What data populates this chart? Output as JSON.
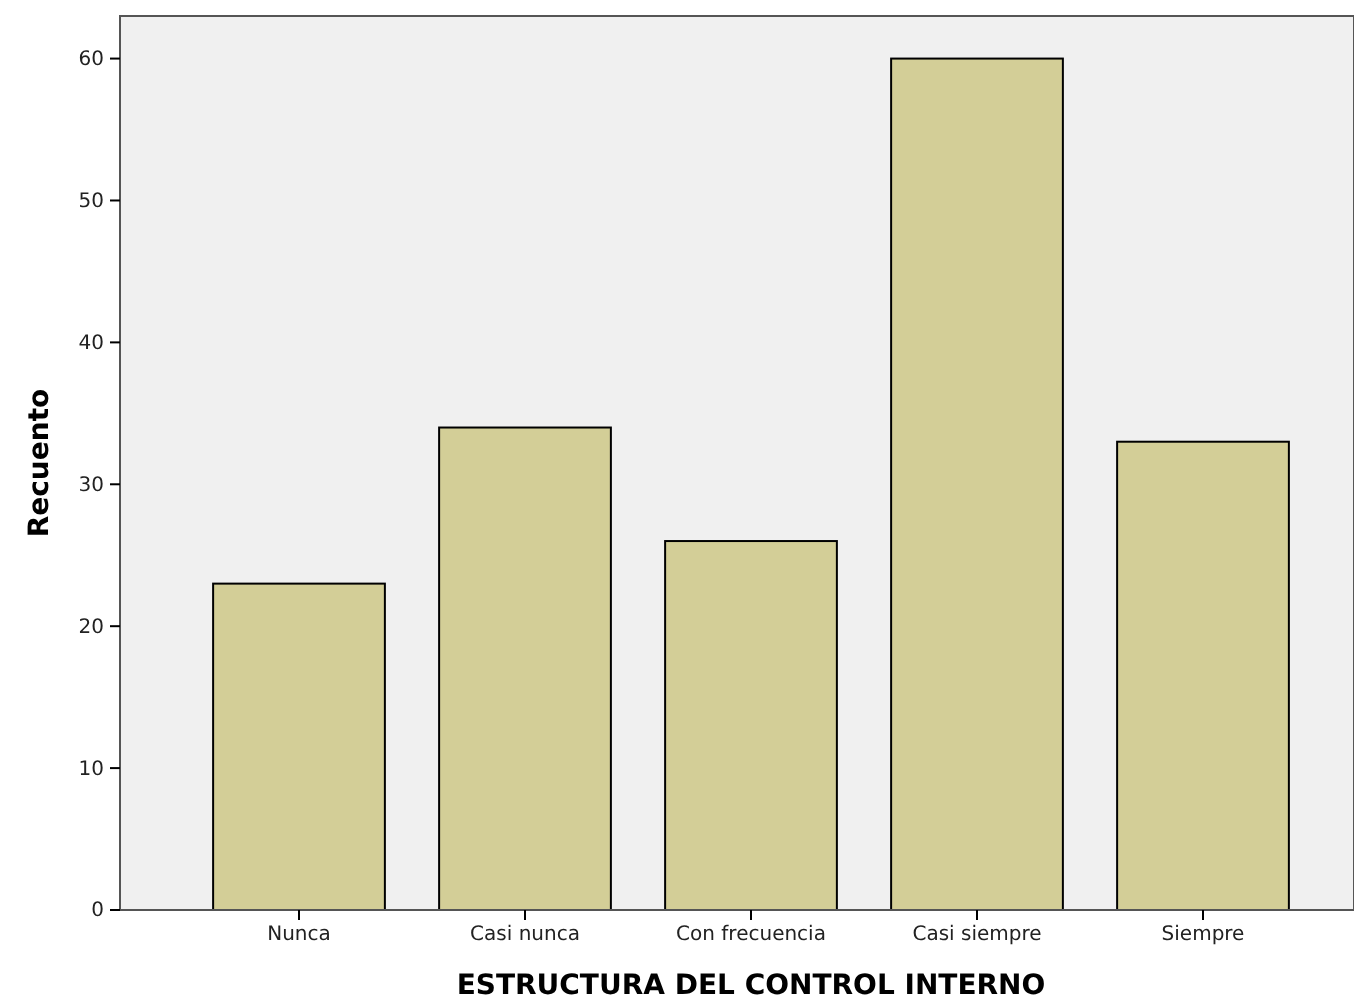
{
  "chart_data": {
    "type": "bar",
    "xlabel": "ESTRUCTURA DEL CONTROL INTERNO",
    "ylabel": "Recuento",
    "categories": [
      "Nunca",
      "Casi nunca",
      "Con frecuencia",
      "Casi siempre",
      "Siempre"
    ],
    "values": [
      23,
      34,
      26,
      60,
      33
    ],
    "color": "#d3ce97",
    "ylim": [
      0,
      63
    ],
    "yticks": [
      0,
      10,
      20,
      30,
      40,
      50,
      60
    ],
    "grid": false
  }
}
